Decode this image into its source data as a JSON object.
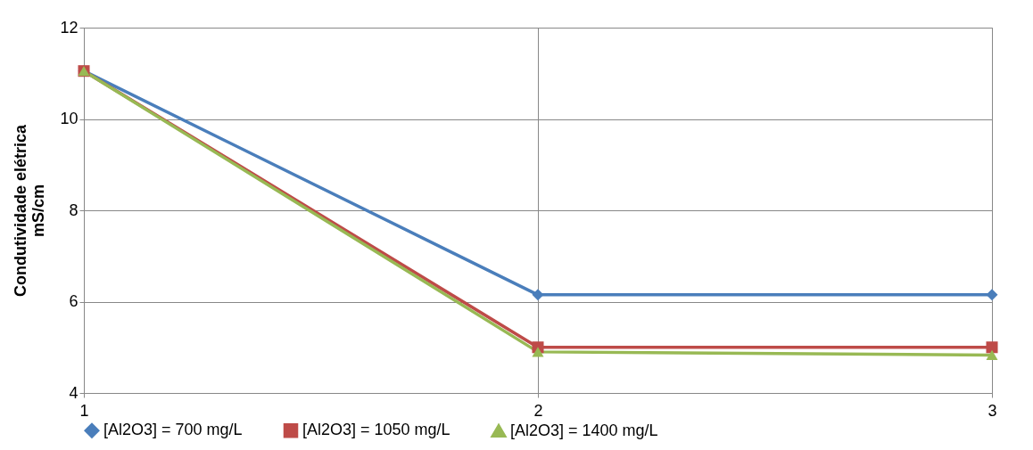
{
  "chart_data": {
    "type": "line",
    "ylabel": "Condutividade elétrica\nmS/cm",
    "x": [
      1,
      2,
      3
    ],
    "xlim": [
      1,
      3
    ],
    "xticks": [
      1,
      2,
      3
    ],
    "ylim": [
      4,
      12
    ],
    "yticks": [
      4,
      6,
      8,
      10,
      12
    ],
    "grid": true,
    "legend": "bottom",
    "line_style": "solid",
    "series": [
      {
        "name": "[Al2O3] = 700 mg/L",
        "color": "#4a7ebb",
        "marker": "diamond",
        "values": [
          11.05,
          6.15,
          6.15
        ]
      },
      {
        "name": "[Al2O3] = 1050 mg/L",
        "color": "#be4b48",
        "marker": "square",
        "values": [
          11.05,
          5.0,
          5.0
        ]
      },
      {
        "name": "[Al2O3] = 1400 mg/L",
        "color": "#98b954",
        "marker": "triangle",
        "values": [
          11.05,
          4.9,
          4.83
        ]
      }
    ]
  }
}
